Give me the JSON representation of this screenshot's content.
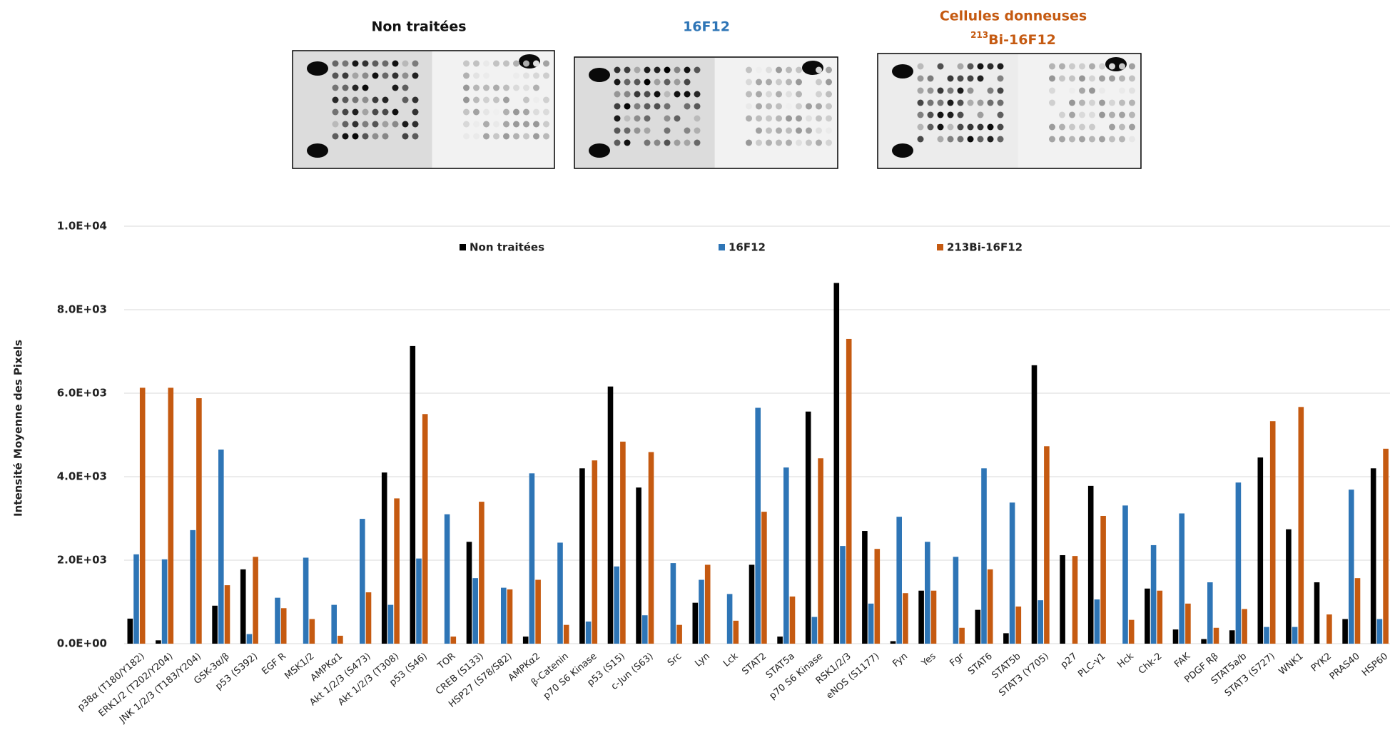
{
  "blots": [
    {
      "title": "Non traitées"
    },
    {
      "title": "16F12"
    },
    {
      "title": "Cellules donneuses",
      "subtitle_superscript": "213",
      "subtitle": "Bi-16F12"
    }
  ],
  "chart_data": {
    "type": "bar",
    "y_label": "Intensité Moyenne des Pixels",
    "categories": [
      "p38α (T180/Y182)",
      "ERK1/2 (T202/Y204)",
      "JNK 1/2/3 (T183/Y204)",
      "GSK-3α/β",
      "p53 (S392)",
      "EGF R",
      "MSK1/2",
      "AMPKα1",
      "Akt 1/2/3 (S473)",
      "Akt 1/2/3 (T308)",
      "p53 (S46)",
      "TOR",
      "CREB (S133)",
      "HSP27 (S78/S82)",
      "AMPKα2",
      "β-Catenin",
      "p70 S6 Kinase",
      "p53 (S15)",
      "c-Jun (S63)",
      "Src",
      "Lyn",
      "Lck",
      "STAT2",
      "STAT5a",
      "p70 S6 Kinase",
      "RSK1/2/3",
      "eNOS (S1177)",
      "Fyn",
      "Yes",
      "Fgr",
      "STAT6",
      "STAT5b",
      "STAT3 (Y705)",
      "p27",
      "PLC-γ1",
      "Hck",
      "Chk-2",
      "FAK",
      "PDGF Rβ",
      "STAT5a/b",
      "STAT3 (S727)",
      "WNK1",
      "PYK2",
      "PRAS40",
      "HSP60"
    ],
    "series": [
      {
        "name": "Non traitées",
        "color": "#000000",
        "values": [
          600,
          80,
          0,
          910,
          1780,
          0,
          0,
          0,
          0,
          4100,
          7130,
          0,
          2440,
          0,
          170,
          0,
          4200,
          6160,
          3740,
          0,
          980,
          0,
          1890,
          170,
          5560,
          8640,
          2700,
          60,
          1270,
          0,
          810,
          250,
          6670,
          2120,
          3780,
          0,
          1320,
          340,
          110,
          320,
          4460,
          2740,
          1470,
          590,
          4200
        ]
      },
      {
        "name": "16F12",
        "color": "#2e75b6",
        "values": [
          2140,
          2020,
          2720,
          4650,
          230,
          1100,
          2060,
          930,
          2990,
          930,
          2040,
          3100,
          1570,
          1340,
          4080,
          2420,
          530,
          1850,
          680,
          1930,
          1530,
          1190,
          5650,
          4220,
          640,
          2340,
          960,
          3040,
          2440,
          2080,
          4200,
          3380,
          1040,
          0,
          1060,
          3310,
          2360,
          3120,
          1470,
          3860,
          400,
          400,
          0,
          3690,
          590
        ]
      },
      {
        "name": "213Bi-16F12",
        "color": "#c55a11",
        "values": [
          6130,
          6130,
          5880,
          1400,
          2080,
          850,
          590,
          190,
          1230,
          3480,
          5500,
          170,
          3400,
          1300,
          1530,
          450,
          4390,
          4840,
          4590,
          450,
          1890,
          550,
          3160,
          1130,
          4440,
          7300,
          2270,
          1210,
          1270,
          380,
          1780,
          890,
          4730,
          2100,
          3060,
          570,
          1270,
          960,
          380,
          830,
          5330,
          5670,
          700,
          1570,
          4670
        ]
      }
    ],
    "ylim": [
      0,
      10000
    ],
    "yticks": [
      {
        "value": 0,
        "label": "0.0E+00"
      },
      {
        "value": 2000,
        "label": "2.0E+03"
      },
      {
        "value": 4000,
        "label": "4.0E+03"
      },
      {
        "value": 6000,
        "label": "6.0E+03"
      },
      {
        "value": 8000,
        "label": "8.0E+03"
      },
      {
        "value": 10000,
        "label": "1.0E+04"
      }
    ],
    "grid": true
  }
}
